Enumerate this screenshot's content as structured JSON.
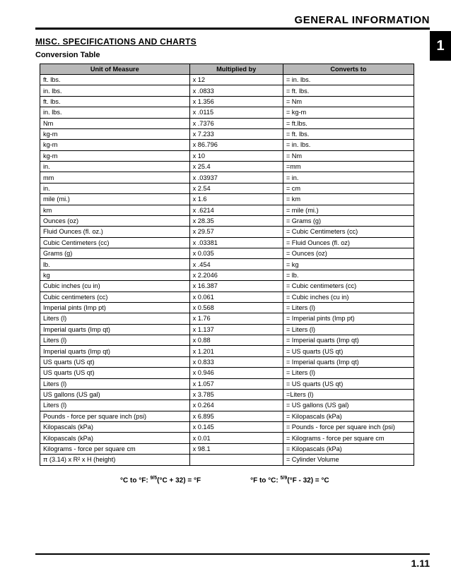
{
  "header": {
    "title": "GENERAL INFORMATION"
  },
  "chapter": {
    "number": "1"
  },
  "section": {
    "title": "MISC. SPECIFICATIONS AND CHARTS",
    "subtitle": "Conversion Table"
  },
  "table": {
    "columns": [
      "Unit of Measure",
      "Multiplied by",
      "Converts to"
    ],
    "col_widths": [
      "40%",
      "25%",
      "35%"
    ],
    "header_bg": "#b8b8b8",
    "rows": [
      [
        "ft. lbs.",
        "x 12",
        "= in. lbs."
      ],
      [
        "in. lbs.",
        "x .0833",
        "= ft. lbs."
      ],
      [
        "ft. lbs.",
        "x 1.356",
        "= Nm"
      ],
      [
        "in. lbs.",
        "x .0115",
        "= kg-m"
      ],
      [
        "Nm",
        "x .7376",
        "= ft.lbs."
      ],
      [
        "kg-m",
        "x 7.233",
        "= ft. lbs."
      ],
      [
        "kg-m",
        "x 86.796",
        "= in. lbs."
      ],
      [
        "kg-m",
        "x 10",
        "= Nm"
      ],
      [
        "in.",
        "x 25.4",
        "=mm"
      ],
      [
        "mm",
        "x .03937",
        "= in."
      ],
      [
        "in.",
        "x 2.54",
        "= cm"
      ],
      [
        "mile (mi.)",
        "x 1.6",
        "= km"
      ],
      [
        "km",
        "x .6214",
        "= mile (mi.)"
      ],
      [
        "Ounces (oz)",
        "x 28.35",
        "= Grams (g)"
      ],
      [
        "Fluid Ounces (fl. oz.)",
        "x 29.57",
        "= Cubic Centimeters (cc)"
      ],
      [
        "Cubic Centimeters (cc)",
        "x .03381",
        "= Fluid Ounces (fl. oz)"
      ],
      [
        "Grams (g)",
        "x 0.035",
        "= Ounces (oz)"
      ],
      [
        "lb.",
        "x .454",
        "= kg"
      ],
      [
        "kg",
        "x 2.2046",
        "= lb."
      ],
      [
        "Cubic inches (cu in)",
        "x 16.387",
        "= Cubic centimeters (cc)"
      ],
      [
        "Cubic centimeters (cc)",
        "x 0.061",
        "= Cubic inches (cu in)"
      ],
      [
        "Imperial pints (Imp pt)",
        "x 0.568",
        "= Liters (l)"
      ],
      [
        "Liters (l)",
        "x 1.76",
        "= Imperial pints (Imp pt)"
      ],
      [
        "Imperial quarts (Imp qt)",
        "x 1.137",
        "= Liters (l)"
      ],
      [
        "Liters (l)",
        "x 0.88",
        "= Imperial quarts (Imp qt)"
      ],
      [
        "Imperial quarts (Imp qt)",
        "x 1.201",
        "= US quarts (US qt)"
      ],
      [
        "US quarts (US qt)",
        "x 0.833",
        "= Imperial quarts (Imp qt)"
      ],
      [
        "US quarts (US qt)",
        "x 0.946",
        "= Liters (l)"
      ],
      [
        "Liters (l)",
        "x 1.057",
        "= US quarts (US qt)"
      ],
      [
        "US gallons (US gal)",
        "x 3.785",
        "=Liters (l)"
      ],
      [
        "Liters (l)",
        "x 0.264",
        "= US gallons (US gal)"
      ],
      [
        "Pounds - force per square inch (psi)",
        "x 6.895",
        "= Kilopascals (kPa)"
      ],
      [
        "Kilopascals (kPa)",
        "x 0.145",
        "= Pounds - force per square inch (psi)"
      ],
      [
        "Kilopascals (kPa)",
        "x 0.01",
        "= Kilograms - force per square cm"
      ],
      [
        "Kilograms - force per square cm",
        "x 98.1",
        "= Kilopascals (kPa)"
      ],
      [
        "π (3.14) x R² x H (height)",
        "",
        "= Cylinder Volume"
      ]
    ]
  },
  "formulas": {
    "c_to_f_label": "°C to °F:",
    "c_to_f_frac": "9/5",
    "c_to_f_expr": "(°C + 32) = °F",
    "f_to_c_label": "°F to °C:",
    "f_to_c_frac": "5/9",
    "f_to_c_expr": "(°F - 32) = °C"
  },
  "footer": {
    "page": "1.11"
  }
}
